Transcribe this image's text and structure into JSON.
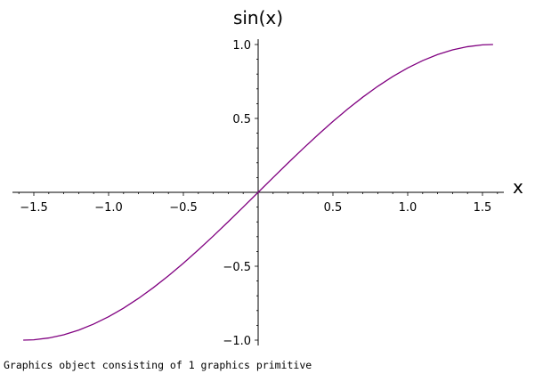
{
  "chart_data": {
    "type": "line",
    "xlabel": "x",
    "ylabel": "sin(x)",
    "xlim": [
      -1.5708,
      1.5708
    ],
    "ylim": [
      -1.0,
      1.0
    ],
    "grid": false,
    "x_ticks": [
      -1.5,
      -1.0,
      -0.5,
      0.5,
      1.0,
      1.5
    ],
    "x_tick_labels": [
      "−1.5",
      "−1.0",
      "−0.5",
      "0.5",
      "1.0",
      "1.5"
    ],
    "y_ticks": [
      1.0,
      0.5,
      -0.5,
      -1.0
    ],
    "y_tick_labels": [
      "1.0",
      "0.5",
      "−0.5",
      "−1.0"
    ],
    "series": [
      {
        "color": "#800080",
        "x": [
          -1.5708,
          -1.5,
          -1.4,
          -1.3,
          -1.2,
          -1.1,
          -1.0,
          -0.9,
          -0.8,
          -0.7,
          -0.6,
          -0.5,
          -0.4,
          -0.3,
          -0.2,
          -0.1,
          0.0,
          0.1,
          0.2,
          0.3,
          0.4,
          0.5,
          0.6,
          0.7,
          0.8,
          0.9,
          1.0,
          1.1,
          1.2,
          1.3,
          1.4,
          1.5,
          1.5708
        ],
        "y": [
          -1.0,
          -0.9975,
          -0.9854,
          -0.9636,
          -0.932,
          -0.8912,
          -0.8415,
          -0.7833,
          -0.7174,
          -0.6442,
          -0.5646,
          -0.4794,
          -0.3894,
          -0.2955,
          -0.1987,
          -0.0998,
          0.0,
          0.0998,
          0.1987,
          0.2955,
          0.3894,
          0.4794,
          0.5646,
          0.6442,
          0.7174,
          0.7833,
          0.8415,
          0.8912,
          0.932,
          0.9636,
          0.9854,
          0.9975,
          1.0
        ]
      }
    ]
  },
  "caption": "Graphics object consisting of 1 graphics primitive"
}
